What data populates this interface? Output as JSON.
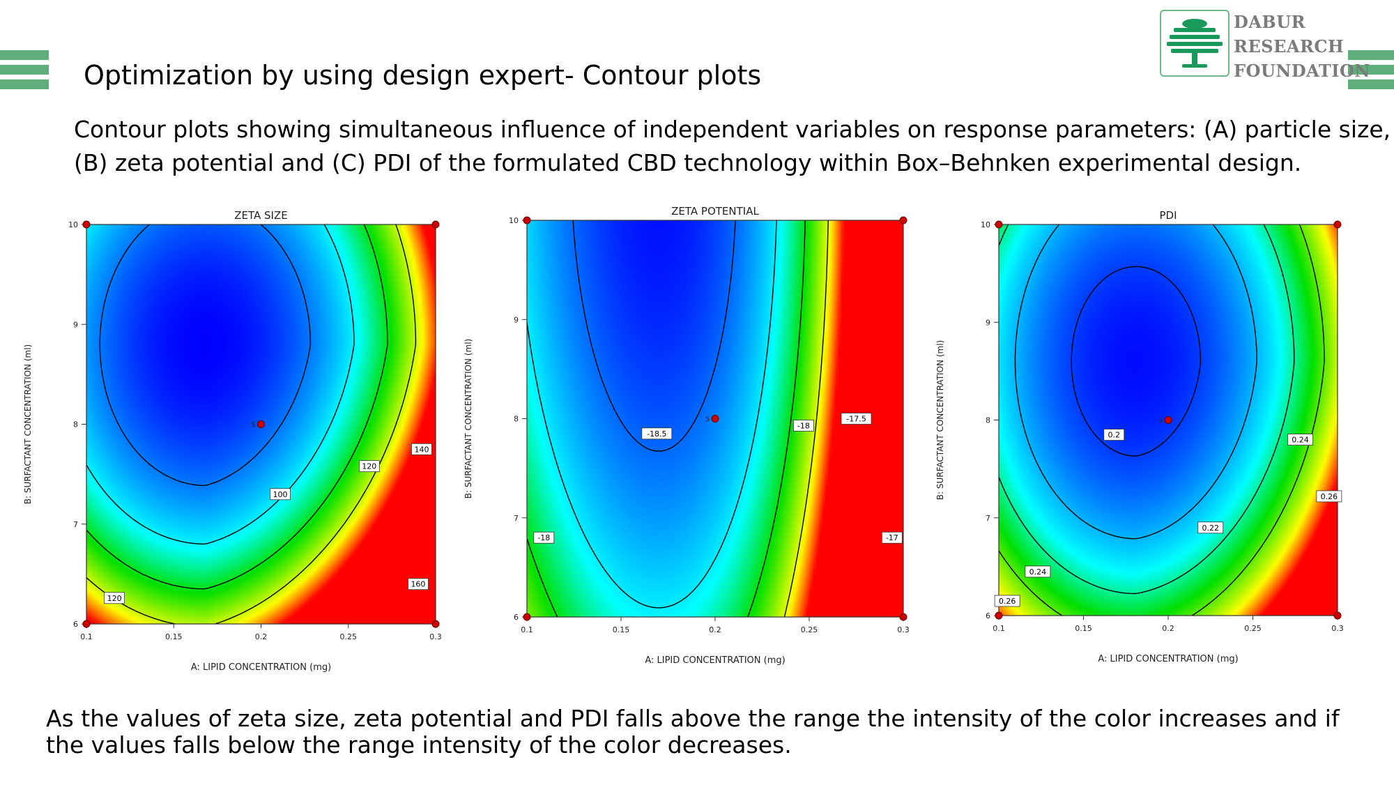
{
  "slide": {
    "title": "Optimization by using design expert- Contour plots",
    "subtitle_lines": [
      "Contour plots showing simultaneous influence of independent variables on response parameters: (A) particle size,",
      "(B) zeta potential and (C) PDI of the formulated CBD technology within Box–Behnken experimental design."
    ],
    "footer_lines": [
      "As the values of zeta size, zeta potential and PDI falls above the range the intensity of the color increases and if",
      "the values falls below the range intensity of the color decreases."
    ]
  },
  "logo": {
    "lines": [
      "DABUR",
      "RESEARCH",
      "FOUNDATION"
    ],
    "icon": "tree-icon",
    "color": "#1a9a5a"
  },
  "decor": {
    "bar_color": "#5fae7c"
  },
  "colors": {
    "low": "#0000ff",
    "mid": "#00ffff",
    "midhigh": "#00e000",
    "high": "#ffff00",
    "max": "#ff0000",
    "design_point": "#cc0000"
  },
  "chart_data": [
    {
      "type": "contour",
      "title": "ZETA SIZE",
      "xlabel": "A: LIPID CONCENTRATION (mg)",
      "ylabel": "B: SURFACTANT CONCENTRATION (ml)",
      "xlim": [
        0.1,
        0.3
      ],
      "ylim": [
        6,
        10
      ],
      "x_ticks": [
        "0.1",
        "0.15",
        "0.2",
        "0.25",
        "0.3"
      ],
      "y_ticks": [
        "6",
        "7",
        "8",
        "9",
        "10"
      ],
      "contour_levels": [
        100,
        120,
        140,
        160
      ],
      "contour_labels": [
        {
          "text": "100",
          "x": 0.211,
          "y": 7.3
        },
        {
          "text": "120",
          "x": 0.262,
          "y": 7.58
        },
        {
          "text": "140",
          "x": 0.292,
          "y": 7.75
        },
        {
          "text": "160",
          "x": 0.29,
          "y": 6.4
        },
        {
          "text": "120",
          "x": 0.116,
          "y": 6.26
        }
      ],
      "design_points": [
        {
          "x": 0.1,
          "y": 10
        },
        {
          "x": 0.3,
          "y": 10
        },
        {
          "x": 0.1,
          "y": 6
        },
        {
          "x": 0.3,
          "y": 6
        },
        {
          "x": 0.2,
          "y": 8,
          "label": "5"
        }
      ],
      "min_value": 80,
      "max_value": 180
    },
    {
      "type": "contour",
      "title": "ZETA POTENTIAL",
      "xlabel": "A: LIPID CONCENTRATION (mg)",
      "ylabel": "B: SURFACTANT CONCENTRATION (ml)",
      "xlim": [
        0.1,
        0.3
      ],
      "ylim": [
        6,
        10
      ],
      "x_ticks": [
        "0.1",
        "0.15",
        "0.2",
        "0.25",
        "0.3"
      ],
      "y_ticks": [
        "6",
        "7",
        "8",
        "9",
        "10"
      ],
      "contour_levels": [
        -18.5,
        -18,
        -17.5,
        -17
      ],
      "contour_labels": [
        {
          "text": "-18.5",
          "x": 0.169,
          "y": 7.85
        },
        {
          "text": "-18",
          "x": 0.247,
          "y": 7.93
        },
        {
          "text": "-17.5",
          "x": 0.275,
          "y": 8.0
        },
        {
          "text": "-18",
          "x": 0.109,
          "y": 6.8
        },
        {
          "text": "-17",
          "x": 0.294,
          "y": 6.8
        }
      ],
      "design_points": [
        {
          "x": 0.1,
          "y": 10
        },
        {
          "x": 0.3,
          "y": 10
        },
        {
          "x": 0.1,
          "y": 6
        },
        {
          "x": 0.3,
          "y": 6
        },
        {
          "x": 0.2,
          "y": 8,
          "label": "5"
        }
      ],
      "min_value": -18.9,
      "max_value": -16.6
    },
    {
      "type": "contour",
      "title": "PDI",
      "xlabel": "A: LIPID CONCENTRATION (mg)",
      "ylabel": "B: SURFACTANT CONCENTRATION (ml)",
      "xlim": [
        0.1,
        0.3
      ],
      "ylim": [
        6,
        10
      ],
      "x_ticks": [
        "0.1",
        "0.15",
        "0.2",
        "0.25",
        "0.3"
      ],
      "y_ticks": [
        "6",
        "7",
        "8",
        "9",
        "10"
      ],
      "contour_levels": [
        0.2,
        0.22,
        0.24,
        0.26
      ],
      "contour_labels": [
        {
          "text": "0.2",
          "x": 0.168,
          "y": 7.85
        },
        {
          "text": "0.22",
          "x": 0.225,
          "y": 6.9
        },
        {
          "text": "0.24",
          "x": 0.278,
          "y": 7.8
        },
        {
          "text": "0.26",
          "x": 0.295,
          "y": 7.22
        },
        {
          "text": "0.24",
          "x": 0.123,
          "y": 6.45
        },
        {
          "text": "0.26",
          "x": 0.105,
          "y": 6.15
        }
      ],
      "design_points": [
        {
          "x": 0.1,
          "y": 10
        },
        {
          "x": 0.3,
          "y": 10
        },
        {
          "x": 0.1,
          "y": 6
        },
        {
          "x": 0.3,
          "y": 6
        },
        {
          "x": 0.2,
          "y": 8,
          "label": "5"
        }
      ],
      "min_value": 0.19,
      "max_value": 0.29
    }
  ]
}
